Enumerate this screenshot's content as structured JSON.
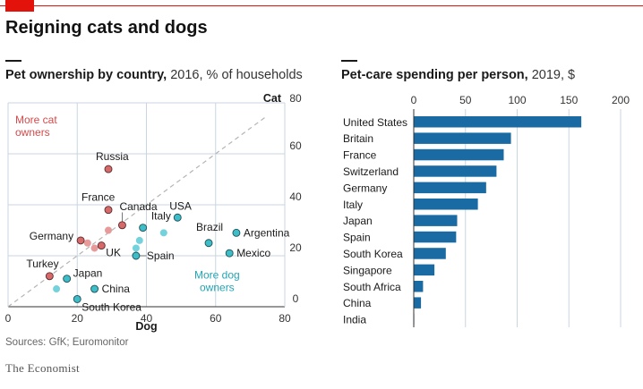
{
  "header": {
    "title": "Reigning cats and dogs"
  },
  "footer": {
    "source": "Sources: GfK; Euromonitor",
    "brand": "The Economist"
  },
  "colors": {
    "cat": "#d66a6a",
    "dog": "#3dbdc7",
    "dog_light": "#74d2dc",
    "cat_light": "#e79a9a",
    "bar": "#1a6ba3",
    "text_cat": "#d64a4a",
    "text_dog": "#21a5b5"
  },
  "chart_data": [
    {
      "type": "scatter",
      "title": "Pet ownership by country,",
      "subtitle": "2016, % of households",
      "xlabel": "Dog",
      "ylabel": "Cat",
      "xlim": [
        0,
        80
      ],
      "ylim": [
        0,
        80
      ],
      "xticks": [
        "0",
        "20",
        "40",
        "60",
        "80"
      ],
      "yticks": [
        "0",
        "20",
        "40",
        "60",
        "80"
      ],
      "annotations": {
        "cat_label": [
          "More cat",
          "owners"
        ],
        "dog_label": [
          "More dog",
          "owners"
        ]
      },
      "points": [
        {
          "label": "Russia",
          "x": 29,
          "y": 54,
          "group": "cat"
        },
        {
          "label": "France",
          "x": 29,
          "y": 38,
          "group": "cat"
        },
        {
          "label": "Canada",
          "x": 33,
          "y": 32,
          "group": "cat"
        },
        {
          "label": "Germany",
          "x": 21,
          "y": 26,
          "group": "cat"
        },
        {
          "label": "",
          "x": 23,
          "y": 25,
          "group": "cat_light"
        },
        {
          "label": "",
          "x": 25,
          "y": 23,
          "group": "cat_light"
        },
        {
          "label": "",
          "x": 29,
          "y": 30,
          "group": "cat_light"
        },
        {
          "label": "UK",
          "x": 27,
          "y": 24,
          "group": "cat"
        },
        {
          "label": "Turkey",
          "x": 12,
          "y": 12,
          "group": "cat"
        },
        {
          "label": "USA",
          "x": 49,
          "y": 35,
          "group": "dog"
        },
        {
          "label": "Italy",
          "x": 45,
          "y": 29,
          "group": "dog_light"
        },
        {
          "label": "",
          "x": 38,
          "y": 26,
          "group": "dog_light"
        },
        {
          "label": "",
          "x": 37,
          "y": 23,
          "group": "dog_light"
        },
        {
          "label": "",
          "x": 39,
          "y": 31,
          "group": "dog"
        },
        {
          "label": "Spain",
          "x": 37,
          "y": 20,
          "group": "dog"
        },
        {
          "label": "Brazil",
          "x": 58,
          "y": 25,
          "group": "dog"
        },
        {
          "label": "Argentina",
          "x": 66,
          "y": 29,
          "group": "dog"
        },
        {
          "label": "Mexico",
          "x": 64,
          "y": 21,
          "group": "dog"
        },
        {
          "label": "Japan",
          "x": 17,
          "y": 11,
          "group": "dog"
        },
        {
          "label": "",
          "x": 14,
          "y": 7,
          "group": "dog_light"
        },
        {
          "label": "China",
          "x": 25,
          "y": 7,
          "group": "dog"
        },
        {
          "label": "South Korea",
          "x": 20,
          "y": 3,
          "group": "dog"
        }
      ]
    },
    {
      "type": "bar",
      "title": "Pet-care spending per person,",
      "subtitle": "2019, $",
      "xlim": [
        0,
        200
      ],
      "xticks": [
        "0",
        "50",
        "100",
        "150",
        "200"
      ],
      "categories": [
        "United States",
        "Britain",
        "France",
        "Switzerland",
        "Germany",
        "Italy",
        "Japan",
        "Spain",
        "South Korea",
        "Singapore",
        "South Africa",
        "China",
        "India"
      ],
      "values": [
        162,
        94,
        87,
        80,
        70,
        62,
        42,
        41,
        31,
        20,
        9,
        7,
        0.5
      ]
    }
  ]
}
